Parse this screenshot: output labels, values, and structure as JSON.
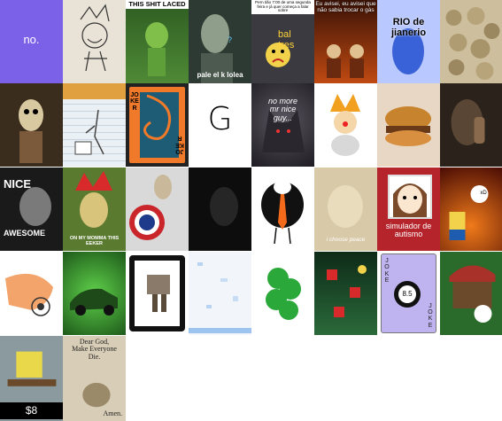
{
  "tiles": [
    {
      "id": "purple-no",
      "caption": "no.",
      "bg": "#7b61e8"
    },
    {
      "id": "jester-sketch",
      "caption": "",
      "bg": "#e9e2d6"
    },
    {
      "id": "shit-laced",
      "caption": "THIS SHIT LACED",
      "bg": "#3c6e2a"
    },
    {
      "id": "pale-el-kolea",
      "caption": "pale el k lolea",
      "bg": "#2d3a33"
    },
    {
      "id": "bal-tres",
      "caption": "bal\ntres",
      "top_text": "Pern tião 7:00 de uma segunda feira e já quer começa a falar sobre",
      "bg": "#3a3a40"
    },
    {
      "id": "eu-avisei",
      "caption": "Eu avisei, eu avisei que não sabia trocar o gás",
      "bg": "#8a2a10"
    },
    {
      "id": "rio-de-jianerio",
      "caption": "RIO de\njianerio",
      "bg": "#b9c8ff"
    },
    {
      "id": "coins-pile",
      "caption": "",
      "bg": "#cdbf9e"
    },
    {
      "id": "scared-skeleton",
      "caption": "",
      "bg": "#3b2d1e"
    },
    {
      "id": "notebook-doodle",
      "caption": "",
      "bg": "#eaf0f4"
    },
    {
      "id": "joker-card",
      "caption": "JOKER",
      "caption2": "JOKER",
      "bg": "#f07a2a"
    },
    {
      "id": "letter-g",
      "caption": "G",
      "bg": "#ffffff"
    },
    {
      "id": "wolf-no-more",
      "caption": "no more\nmr nice\nguy...",
      "bg": "#3d3a45"
    },
    {
      "id": "clown-character",
      "caption": "",
      "bg": "#ffffff"
    },
    {
      "id": "burger-photo",
      "caption": "",
      "bg": "#e8d7c4"
    },
    {
      "id": "dark-shush",
      "caption": "",
      "bg": "#2a221b"
    },
    {
      "id": "nice-awesome",
      "caption": "NICE",
      "caption2": "AWESOME",
      "bg": "#1a1a1a"
    },
    {
      "id": "jester-hat",
      "caption": "ON MY MOMMA THIS EEKER",
      "bg": "#5a7a30"
    },
    {
      "id": "captain-shield",
      "caption": "",
      "bg": "#d9d9d9"
    },
    {
      "id": "dark-face",
      "caption": "",
      "bg": "#0d0d0d"
    },
    {
      "id": "tie-bird",
      "caption": "",
      "bg": "#ffffff"
    },
    {
      "id": "choose-peace",
      "caption": "i choose peace",
      "bg": "#d8c9a8"
    },
    {
      "id": "simulador-autismo",
      "caption": "simulador de autismo",
      "bg": "#b5232b"
    },
    {
      "id": "bart-fire",
      "caption": "xD",
      "bg": "#7a1a08"
    },
    {
      "id": "hand-drawn-figure",
      "caption": "",
      "bg": "#ffffff"
    },
    {
      "id": "green-car",
      "caption": "",
      "bg": "#2f7a2a"
    },
    {
      "id": "toaster-frame",
      "caption": "",
      "bg": "#ffffff"
    },
    {
      "id": "white-noise",
      "caption": "",
      "bg": "#f2f6fb"
    },
    {
      "id": "green-clover",
      "caption": "",
      "bg": "#ffffff"
    },
    {
      "id": "casino-table",
      "caption": "",
      "bg": "#1b4b2a"
    },
    {
      "id": "joke-8ball",
      "caption": "JOKE",
      "caption2": "JOKE",
      "ball": "8.5",
      "bg": "#bfb3f0"
    },
    {
      "id": "cap-man",
      "caption": "",
      "bg": "#2a6a2a"
    },
    {
      "id": "sponge-table",
      "caption": "$8",
      "bg": "#8a9a9f"
    },
    {
      "id": "dear-god",
      "caption": "Dear God,\nMake Everyone\nDie.",
      "caption2": "Amen.",
      "bg": "#d8cdb6"
    }
  ]
}
